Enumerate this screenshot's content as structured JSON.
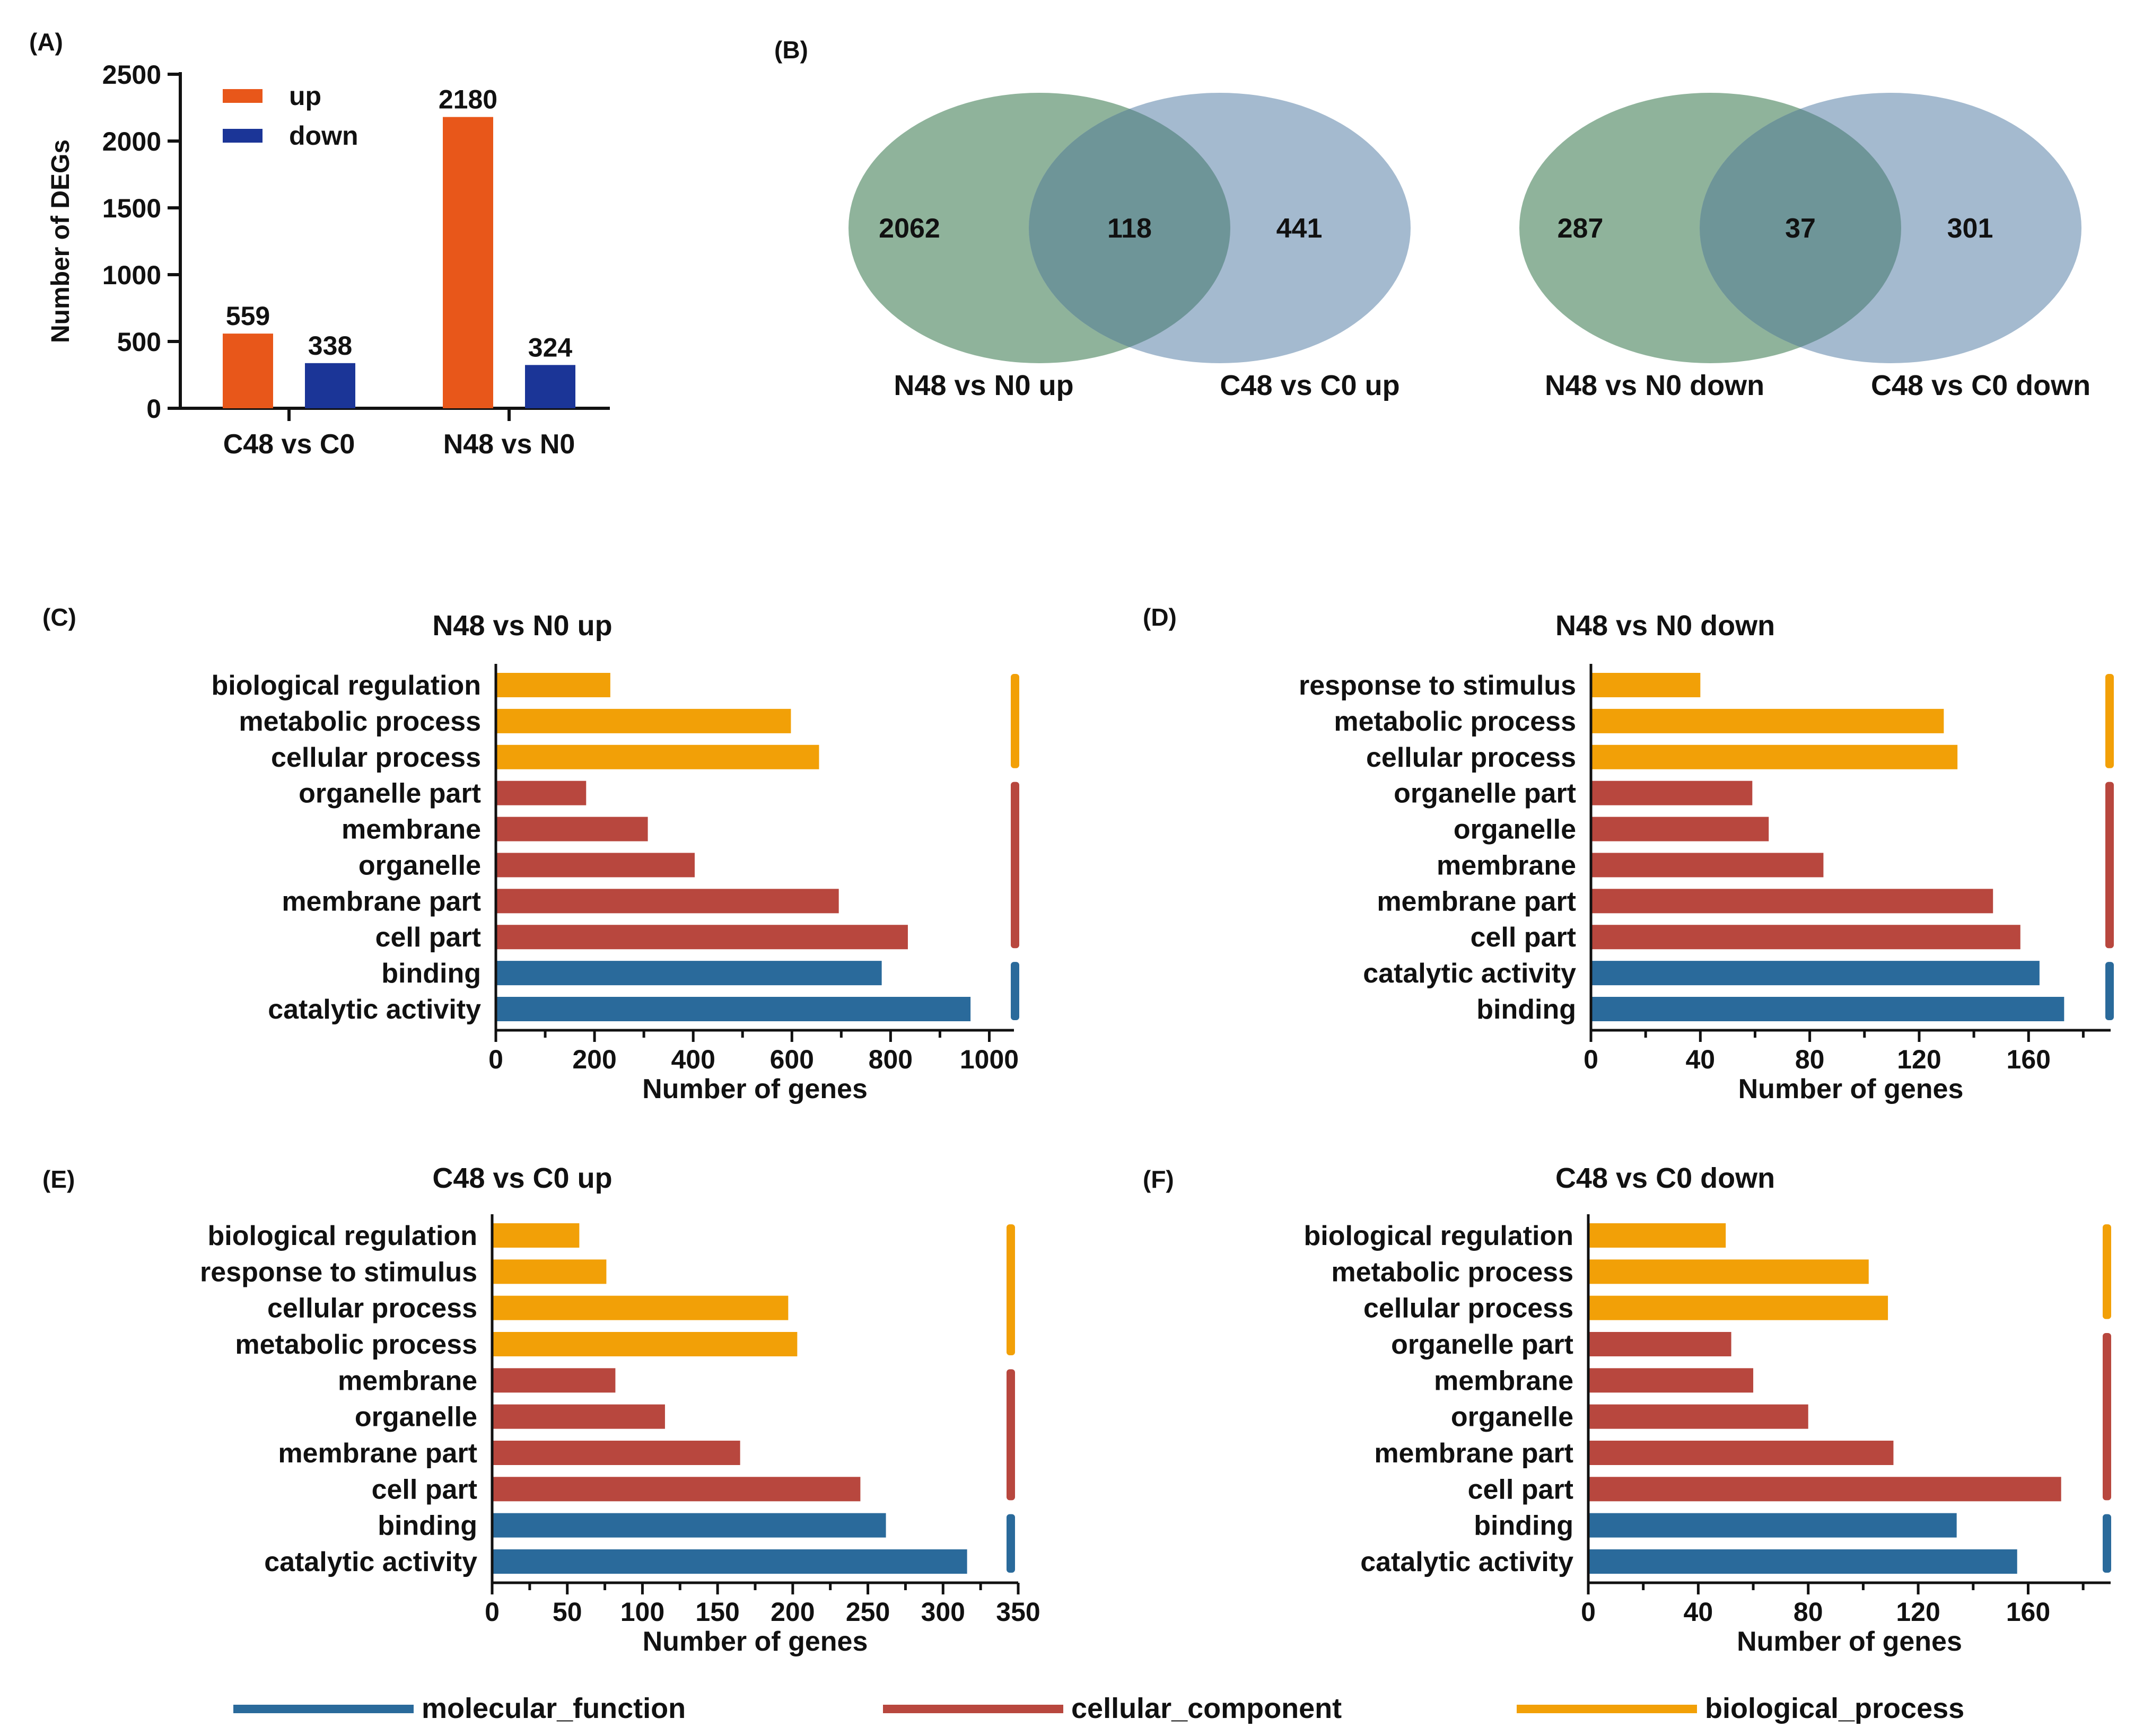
{
  "colors": {
    "up": "#E8571A",
    "down": "#1B3597",
    "molecular_function": "#2A6A9B",
    "cellular_component": "#B8473E",
    "biological_process": "#F2A007",
    "venn_left": "#8FB39B",
    "venn_right": "#A4BACF",
    "venn_overlap": "#6E9598"
  },
  "chart_data": [
    {
      "panel": "(A)",
      "type": "bar",
      "title": "",
      "categories": [
        "C48 vs C0",
        "N48 vs N0"
      ],
      "series": [
        {
          "name": "up",
          "values": [
            559,
            2180
          ]
        },
        {
          "name": "down",
          "values": [
            338,
            324
          ]
        }
      ],
      "ylabel": "Number of DEGs",
      "xlabel": "",
      "ylim": [
        0,
        2500
      ],
      "yticks": [
        0,
        500,
        1000,
        1500,
        2000,
        2500
      ],
      "legend": "top-left"
    },
    {
      "panel": "(B)",
      "type": "venn",
      "diagrams": [
        {
          "left_label": "N48 vs N0 up",
          "right_label": "C48 vs C0 up",
          "left_only": 2062,
          "overlap": 118,
          "right_only": 441
        },
        {
          "left_label": "N48 vs N0 down",
          "right_label": "C48 vs C0 down",
          "left_only": 287,
          "overlap": 37,
          "right_only": 301
        }
      ]
    },
    {
      "panel": "(C)",
      "type": "bar",
      "orientation": "horizontal",
      "title": "N48 vs N0 up",
      "xlabel": "Number of genes",
      "xlim": [
        0,
        1050
      ],
      "xticks": [
        0,
        200,
        400,
        600,
        800,
        1000
      ],
      "categories": [
        "biological regulation",
        "metabolic process",
        "cellular process",
        "organelle part",
        "membrane",
        "organelle",
        "membrane part",
        "cell part",
        "binding",
        "catalytic activity"
      ],
      "groups": [
        "biological_process",
        "biological_process",
        "biological_process",
        "cellular_component",
        "cellular_component",
        "cellular_component",
        "cellular_component",
        "cellular_component",
        "molecular_function",
        "molecular_function"
      ],
      "values": [
        232,
        598,
        655,
        183,
        308,
        403,
        695,
        835,
        782,
        962
      ]
    },
    {
      "panel": "(D)",
      "type": "bar",
      "orientation": "horizontal",
      "title": "N48 vs N0 down",
      "xlabel": "Number of genes",
      "xlim": [
        0,
        190
      ],
      "xticks": [
        0,
        40,
        80,
        120,
        160
      ],
      "categories": [
        "response to stimulus",
        "metabolic process",
        "cellular process",
        "organelle part",
        "organelle",
        "membrane",
        "membrane part",
        "cell part",
        "catalytic activity",
        "binding"
      ],
      "groups": [
        "biological_process",
        "biological_process",
        "biological_process",
        "cellular_component",
        "cellular_component",
        "cellular_component",
        "cellular_component",
        "cellular_component",
        "molecular_function",
        "molecular_function"
      ],
      "values": [
        40,
        129,
        134,
        59,
        65,
        85,
        147,
        157,
        164,
        173
      ]
    },
    {
      "panel": "(E)",
      "type": "bar",
      "orientation": "horizontal",
      "title": "C48 vs C0 up",
      "xlabel": "Number of genes",
      "xlim": [
        0,
        350
      ],
      "xticks": [
        0,
        50,
        100,
        150,
        200,
        250,
        300,
        350
      ],
      "categories": [
        "biological regulation",
        "response to stimulus",
        "cellular process",
        "metabolic process",
        "membrane",
        "organelle",
        "membrane part",
        "cell part",
        "binding",
        "catalytic activity"
      ],
      "groups": [
        "biological_process",
        "biological_process",
        "biological_process",
        "biological_process",
        "cellular_component",
        "cellular_component",
        "cellular_component",
        "cellular_component",
        "molecular_function",
        "molecular_function"
      ],
      "values": [
        58,
        76,
        197,
        203,
        82,
        115,
        165,
        245,
        262,
        316
      ]
    },
    {
      "panel": "(F)",
      "type": "bar",
      "orientation": "horizontal",
      "title": "C48 vs C0 down",
      "xlabel": "Number of genes",
      "xlim": [
        0,
        190
      ],
      "xticks": [
        0,
        40,
        80,
        120,
        160
      ],
      "categories": [
        "biological regulation",
        "metabolic process",
        "cellular process",
        "organelle part",
        "membrane",
        "organelle",
        "membrane part",
        "cell part",
        "binding",
        "catalytic activity"
      ],
      "groups": [
        "biological_process",
        "biological_process",
        "biological_process",
        "cellular_component",
        "cellular_component",
        "cellular_component",
        "cellular_component",
        "cellular_component",
        "molecular_function",
        "molecular_function"
      ],
      "values": [
        50,
        102,
        109,
        52,
        60,
        80,
        111,
        172,
        134,
        156
      ]
    }
  ],
  "go_legend": [
    {
      "key": "molecular_function",
      "label": "molecular_function"
    },
    {
      "key": "cellular_component",
      "label": "cellular_component"
    },
    {
      "key": "biological_process",
      "label": "biological_process"
    }
  ]
}
